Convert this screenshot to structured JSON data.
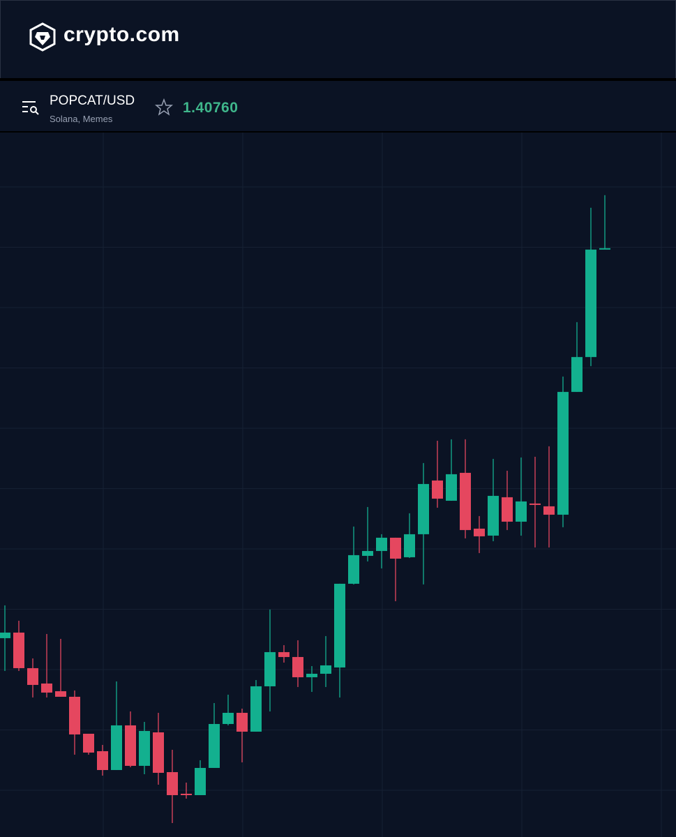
{
  "header": {
    "brand": "crypto.com"
  },
  "ticker": {
    "pair": "POPCAT/USD",
    "tags": "Solana, Memes",
    "price": "1.40760"
  },
  "chart_data": {
    "type": "candlestick",
    "ylim": [
      0.9856,
      1.488
    ],
    "grid": true,
    "up_color": "#13b08f",
    "down_color": "#e5475f",
    "open": [
      1.1281,
      1.1321,
      1.1066,
      1.0956,
      1.0901,
      1.0861,
      1.0596,
      1.0471,
      1.0336,
      1.0656,
      1.0366,
      1.0606,
      1.0321,
      1.0166,
      1.0156,
      1.0351,
      1.0666,
      1.0746,
      1.0611,
      1.0936,
      1.1181,
      1.1146,
      1.1001,
      1.1026,
      1.1071,
      1.1671,
      1.1871,
      1.1906,
      1.2001,
      1.1861,
      1.2026,
      1.2411,
      1.2266,
      1.2466,
      1.2066,
      1.2016,
      1.2291,
      1.2116,
      1.2246,
      1.2226,
      1.2166,
      1.3046,
      1.3296,
      1.4071
    ],
    "high": [
      1.1516,
      1.1406,
      1.1136,
      1.1311,
      1.1276,
      1.0906,
      1.0596,
      1.0516,
      1.0971,
      1.0756,
      1.0681,
      1.0746,
      1.0481,
      1.0246,
      1.0406,
      1.0816,
      1.0876,
      1.0776,
      1.0981,
      1.1486,
      1.1231,
      1.1266,
      1.1081,
      1.1296,
      1.1671,
      1.2081,
      1.2221,
      1.2026,
      1.2001,
      1.2176,
      1.2536,
      1.2696,
      1.2706,
      1.2706,
      1.2156,
      1.2566,
      1.2481,
      1.2576,
      1.2581,
      1.2656,
      1.3156,
      1.3546,
      1.4366,
      1.4456
    ],
    "low": [
      1.1046,
      1.1046,
      1.0856,
      1.0856,
      1.0861,
      1.0446,
      1.0446,
      1.0296,
      1.0336,
      1.0356,
      1.0306,
      1.0231,
      0.9956,
      1.0131,
      1.0156,
      1.0351,
      1.0656,
      1.0391,
      1.0611,
      1.0756,
      1.1106,
      1.0931,
      1.0896,
      1.0931,
      1.0856,
      1.1666,
      1.1831,
      1.1781,
      1.1546,
      1.1856,
      1.1666,
      1.2216,
      1.2266,
      1.1996,
      1.1891,
      1.1976,
      1.2056,
      1.2016,
      1.1931,
      1.1931,
      1.2076,
      1.3046,
      1.3231,
      1.4071
    ],
    "close": [
      1.1321,
      1.1066,
      1.0946,
      1.0891,
      1.0861,
      1.0591,
      1.0461,
      1.0336,
      1.0656,
      1.0366,
      1.0616,
      1.0316,
      1.0156,
      1.0156,
      1.0351,
      1.0666,
      1.0746,
      1.0611,
      1.0936,
      1.1181,
      1.1146,
      1.1001,
      1.1026,
      1.1086,
      1.1671,
      1.1876,
      1.1906,
      1.2001,
      1.1851,
      1.2026,
      1.2386,
      1.2281,
      1.2456,
      1.2056,
      1.2011,
      1.2301,
      1.2116,
      1.2261,
      1.2236,
      1.2166,
      1.3046,
      1.3296,
      1.4066,
      1.4076
    ]
  }
}
